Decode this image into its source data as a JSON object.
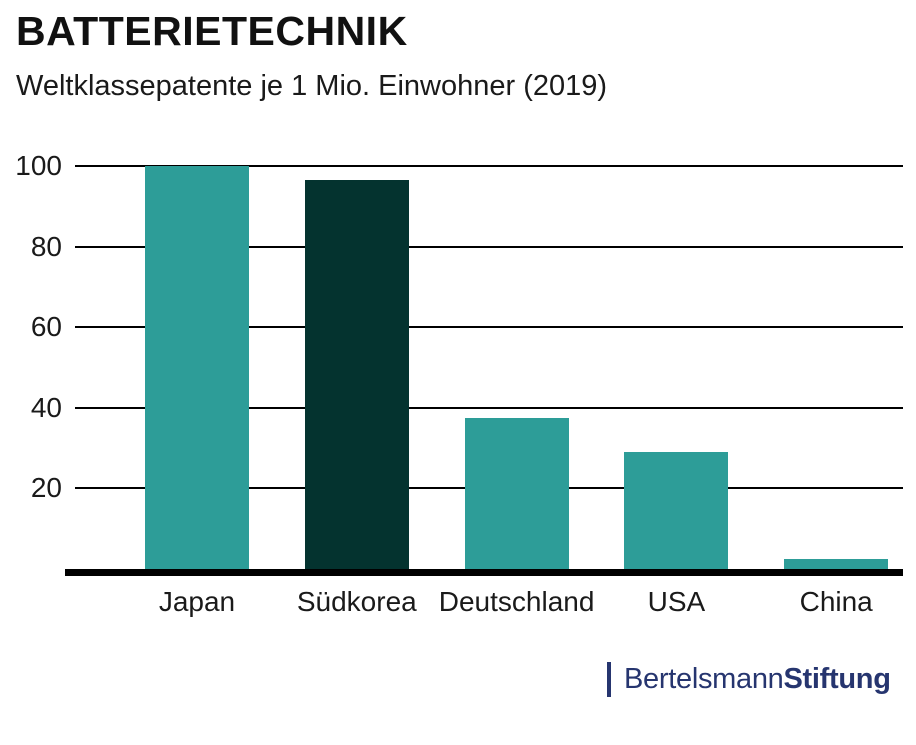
{
  "header": {
    "title": "BATTERIETECHNIK",
    "subtitle": "Weltklassepatente je 1 Mio. Einwohner (2019)"
  },
  "chart_data": {
    "type": "bar",
    "title": "BATTERIETECHNIK",
    "subtitle": "Weltklassepatente je 1 Mio. Einwohner (2019)",
    "categories": [
      "Japan",
      "Südkorea",
      "Deutschland",
      "USA",
      "China"
    ],
    "values": [
      100,
      96.5,
      37.5,
      29,
      2.5
    ],
    "bar_colors": [
      "#2d9d98",
      "#04332f",
      "#2d9d98",
      "#2d9d98",
      "#2d9d98"
    ],
    "highlight_category": "Südkorea",
    "xlabel": "",
    "ylabel": "",
    "ylim": [
      0,
      100
    ],
    "yticks": [
      20,
      40,
      60,
      80,
      100
    ],
    "grid": true,
    "legend": "none"
  },
  "colors": {
    "teal": "#2d9d98",
    "dark_teal": "#04332f",
    "brand_blue": "#26356f",
    "text": "#1a1a1a",
    "axis": "#000000",
    "background": "#ffffff"
  },
  "footer": {
    "brand_regular": "Bertelsmann",
    "brand_bold": "Stiftung"
  }
}
